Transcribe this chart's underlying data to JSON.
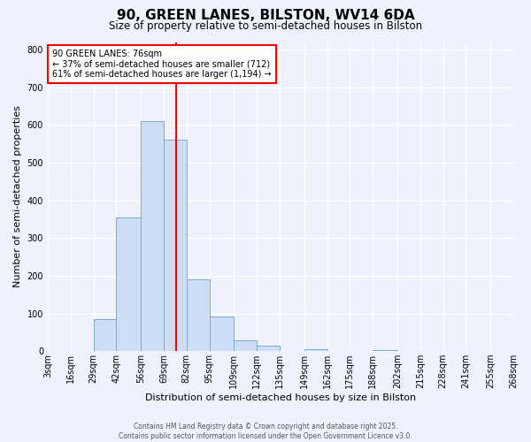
{
  "title": "90, GREEN LANES, BILSTON, WV14 6DA",
  "subtitle": "Size of property relative to semi-detached houses in Bilston",
  "xlabel": "Distribution of semi-detached houses by size in Bilston",
  "ylabel": "Number of semi-detached properties",
  "bin_edges": [
    3,
    16,
    29,
    42,
    56,
    69,
    82,
    95,
    109,
    122,
    135,
    149,
    162,
    175,
    188,
    202,
    215,
    228,
    241,
    255,
    268
  ],
  "bar_heights": [
    0,
    0,
    85,
    355,
    610,
    560,
    190,
    93,
    28,
    15,
    0,
    5,
    0,
    0,
    2,
    0,
    0,
    0,
    0,
    0
  ],
  "bar_color": "#ccddf5",
  "bar_edgecolor": "#7aaad0",
  "property_line_x": 76,
  "property_line_color": "red",
  "annotation_title": "90 GREEN LANES: 76sqm",
  "annotation_line1": "← 37% of semi-detached houses are smaller (712)",
  "annotation_line2": "61% of semi-detached houses are larger (1,194) →",
  "ylim": [
    0,
    820
  ],
  "yticks": [
    0,
    100,
    200,
    300,
    400,
    500,
    600,
    700,
    800
  ],
  "tick_labels": [
    "3sqm",
    "16sqm",
    "29sqm",
    "42sqm",
    "56sqm",
    "69sqm",
    "82sqm",
    "95sqm",
    "109sqm",
    "122sqm",
    "135sqm",
    "149sqm",
    "162sqm",
    "175sqm",
    "188sqm",
    "202sqm",
    "215sqm",
    "228sqm",
    "241sqm",
    "255sqm",
    "268sqm"
  ],
  "footer1": "Contains HM Land Registry data © Crown copyright and database right 2025.",
  "footer2": "Contains public sector information licensed under the Open Government Licence v3.0.",
  "background_color": "#eef2fc",
  "grid_color": "white",
  "title_fontsize": 11,
  "subtitle_fontsize": 8.5,
  "ylabel_fontsize": 8,
  "xlabel_fontsize": 8,
  "footer_fontsize": 5.5
}
